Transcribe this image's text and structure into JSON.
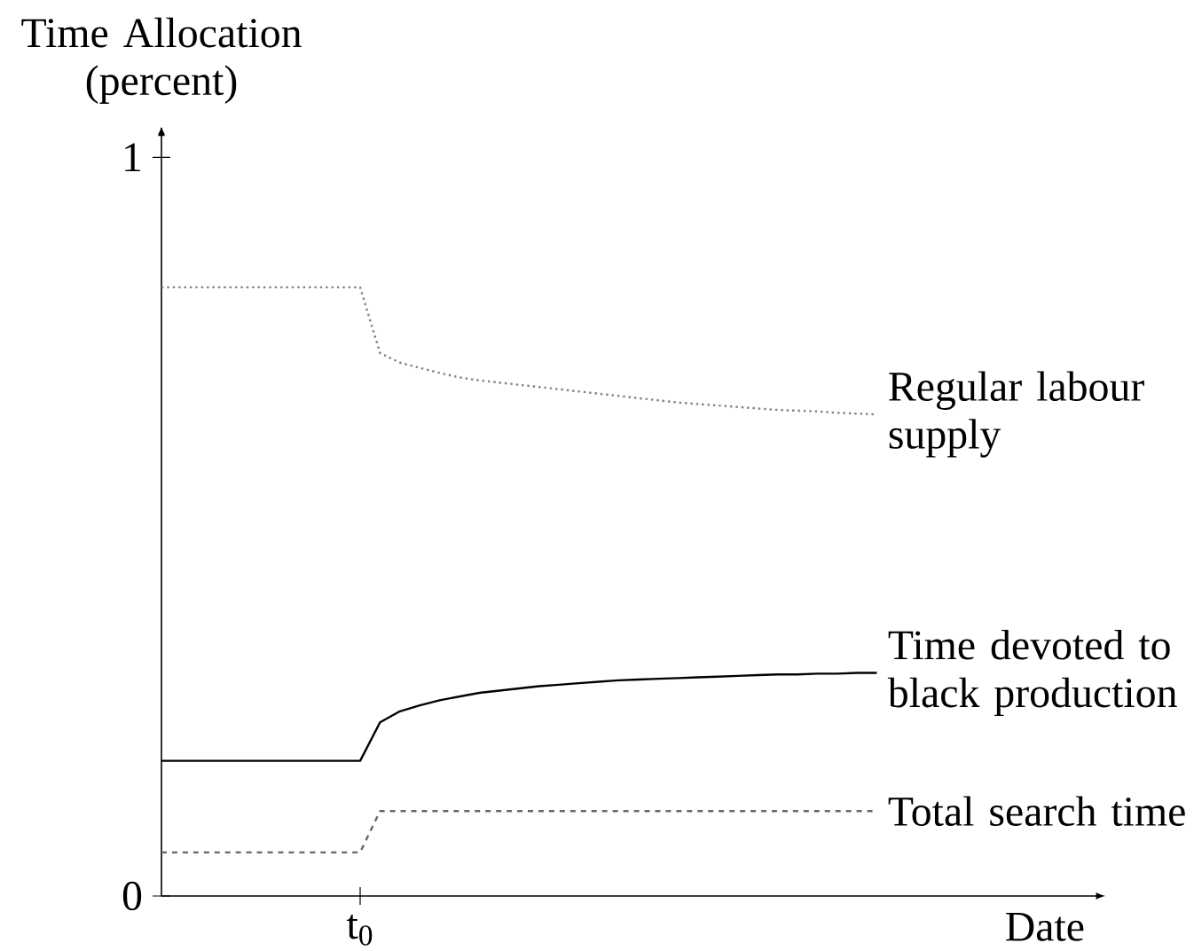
{
  "chart_data": {
    "type": "line",
    "ylabel": "Time Allocation (percent)",
    "xlabel": "Date",
    "categories": [
      null,
      null,
      null,
      null,
      null,
      null,
      null,
      null,
      null,
      null,
      "t$_{0}$",
      null,
      null,
      null,
      null,
      null,
      null,
      null,
      null,
      null,
      null,
      null,
      null,
      null,
      null,
      null,
      null,
      null,
      null,
      null,
      null,
      null,
      null,
      null,
      null,
      null,
      null
    ],
    "ylim": [
      0,
      1.04
    ],
    "yticks": [
      {
        "value": 0,
        "label": "0"
      },
      {
        "value": 1,
        "label": "1"
      }
    ],
    "series": [
      {
        "name": "Regular labour supply",
        "color": "#808080",
        "line_style": "dotted",
        "values": [
          0.824,
          0.824,
          0.824,
          0.824,
          0.824,
          0.824,
          0.824,
          0.824,
          0.824,
          0.824,
          0.824,
          0.735,
          0.722,
          0.715,
          0.708,
          0.702,
          0.698,
          0.695,
          0.692,
          0.689,
          0.686,
          0.683,
          0.68,
          0.677,
          0.674,
          0.671,
          0.668,
          0.666,
          0.664,
          0.662,
          0.66,
          0.658,
          0.657,
          0.656,
          0.654,
          0.653,
          0.652
        ]
      },
      {
        "name": "Time devoted to black production",
        "color": "#000000",
        "line_style": "solid",
        "values": [
          0.183,
          0.183,
          0.183,
          0.183,
          0.183,
          0.183,
          0.183,
          0.183,
          0.183,
          0.183,
          0.183,
          0.235,
          0.25,
          0.258,
          0.265,
          0.27,
          0.275,
          0.278,
          0.281,
          0.284,
          0.286,
          0.288,
          0.29,
          0.292,
          0.293,
          0.294,
          0.295,
          0.296,
          0.297,
          0.298,
          0.299,
          0.3,
          0.3,
          0.301,
          0.301,
          0.302,
          0.302
        ]
      },
      {
        "name": "Total search time",
        "color": "#666666",
        "line_style": "dashed",
        "values": [
          0.059,
          0.059,
          0.059,
          0.059,
          0.059,
          0.059,
          0.059,
          0.059,
          0.059,
          0.059,
          0.059,
          0.115,
          0.115,
          0.115,
          0.115,
          0.115,
          0.115,
          0.115,
          0.115,
          0.115,
          0.115,
          0.115,
          0.115,
          0.115,
          0.115,
          0.115,
          0.115,
          0.115,
          0.115,
          0.115,
          0.115,
          0.115,
          0.115,
          0.115,
          0.115,
          0.115,
          0.115
        ]
      }
    ]
  }
}
